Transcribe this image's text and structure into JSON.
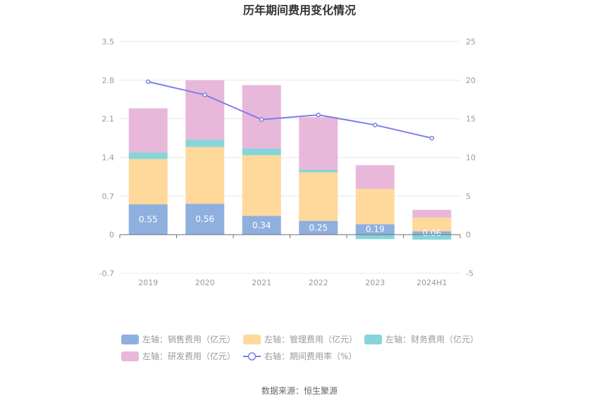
{
  "chart_data": {
    "type": "bar",
    "title": "历年期间费用变化情况",
    "categories": [
      "2019",
      "2020",
      "2021",
      "2022",
      "2023",
      "2024H1"
    ],
    "left_axis": {
      "ticks": [
        "3.5",
        "2.8",
        "2.1",
        "1.4",
        "0.7",
        "0",
        "-0.7"
      ],
      "ylim": [
        -0.7,
        3.5
      ]
    },
    "right_axis": {
      "ticks": [
        "25",
        "20",
        "15",
        "10",
        "5",
        "0",
        "-5"
      ],
      "ylim": [
        -5,
        25
      ]
    },
    "series": [
      {
        "name": "左轴：销售费用（亿元）",
        "type": "bar",
        "axis": "left",
        "color": "#8fb0de",
        "values": [
          0.55,
          0.56,
          0.34,
          0.25,
          0.19,
          0.06
        ]
      },
      {
        "name": "左轴：管理费用（亿元）",
        "type": "bar",
        "axis": "left",
        "color": "#ffd89b",
        "values": [
          0.82,
          1.03,
          1.1,
          0.88,
          0.64,
          0.25
        ]
      },
      {
        "name": "左轴：财务费用（亿元）",
        "type": "bar",
        "axis": "left",
        "color": "#86d5d8",
        "values": [
          0.12,
          0.13,
          0.12,
          0.05,
          -0.08,
          -0.09
        ]
      },
      {
        "name": "左轴：研发费用（亿元）",
        "type": "bar",
        "axis": "left",
        "color": "#e8b8da",
        "values": [
          0.8,
          1.08,
          1.15,
          0.95,
          0.43,
          0.14
        ]
      },
      {
        "name": "右轴：期间费用率（%）",
        "type": "line",
        "axis": "right",
        "color": "#7b7fe8",
        "values": [
          19.8,
          18.1,
          14.9,
          15.5,
          14.2,
          12.5
        ]
      }
    ],
    "data_labels": [
      "0.55",
      "0.56",
      "0.34",
      "0.25",
      "0.19",
      "0.06"
    ],
    "grid": true,
    "legend_position": "bottom"
  },
  "source": "数据来源：恒生聚源"
}
